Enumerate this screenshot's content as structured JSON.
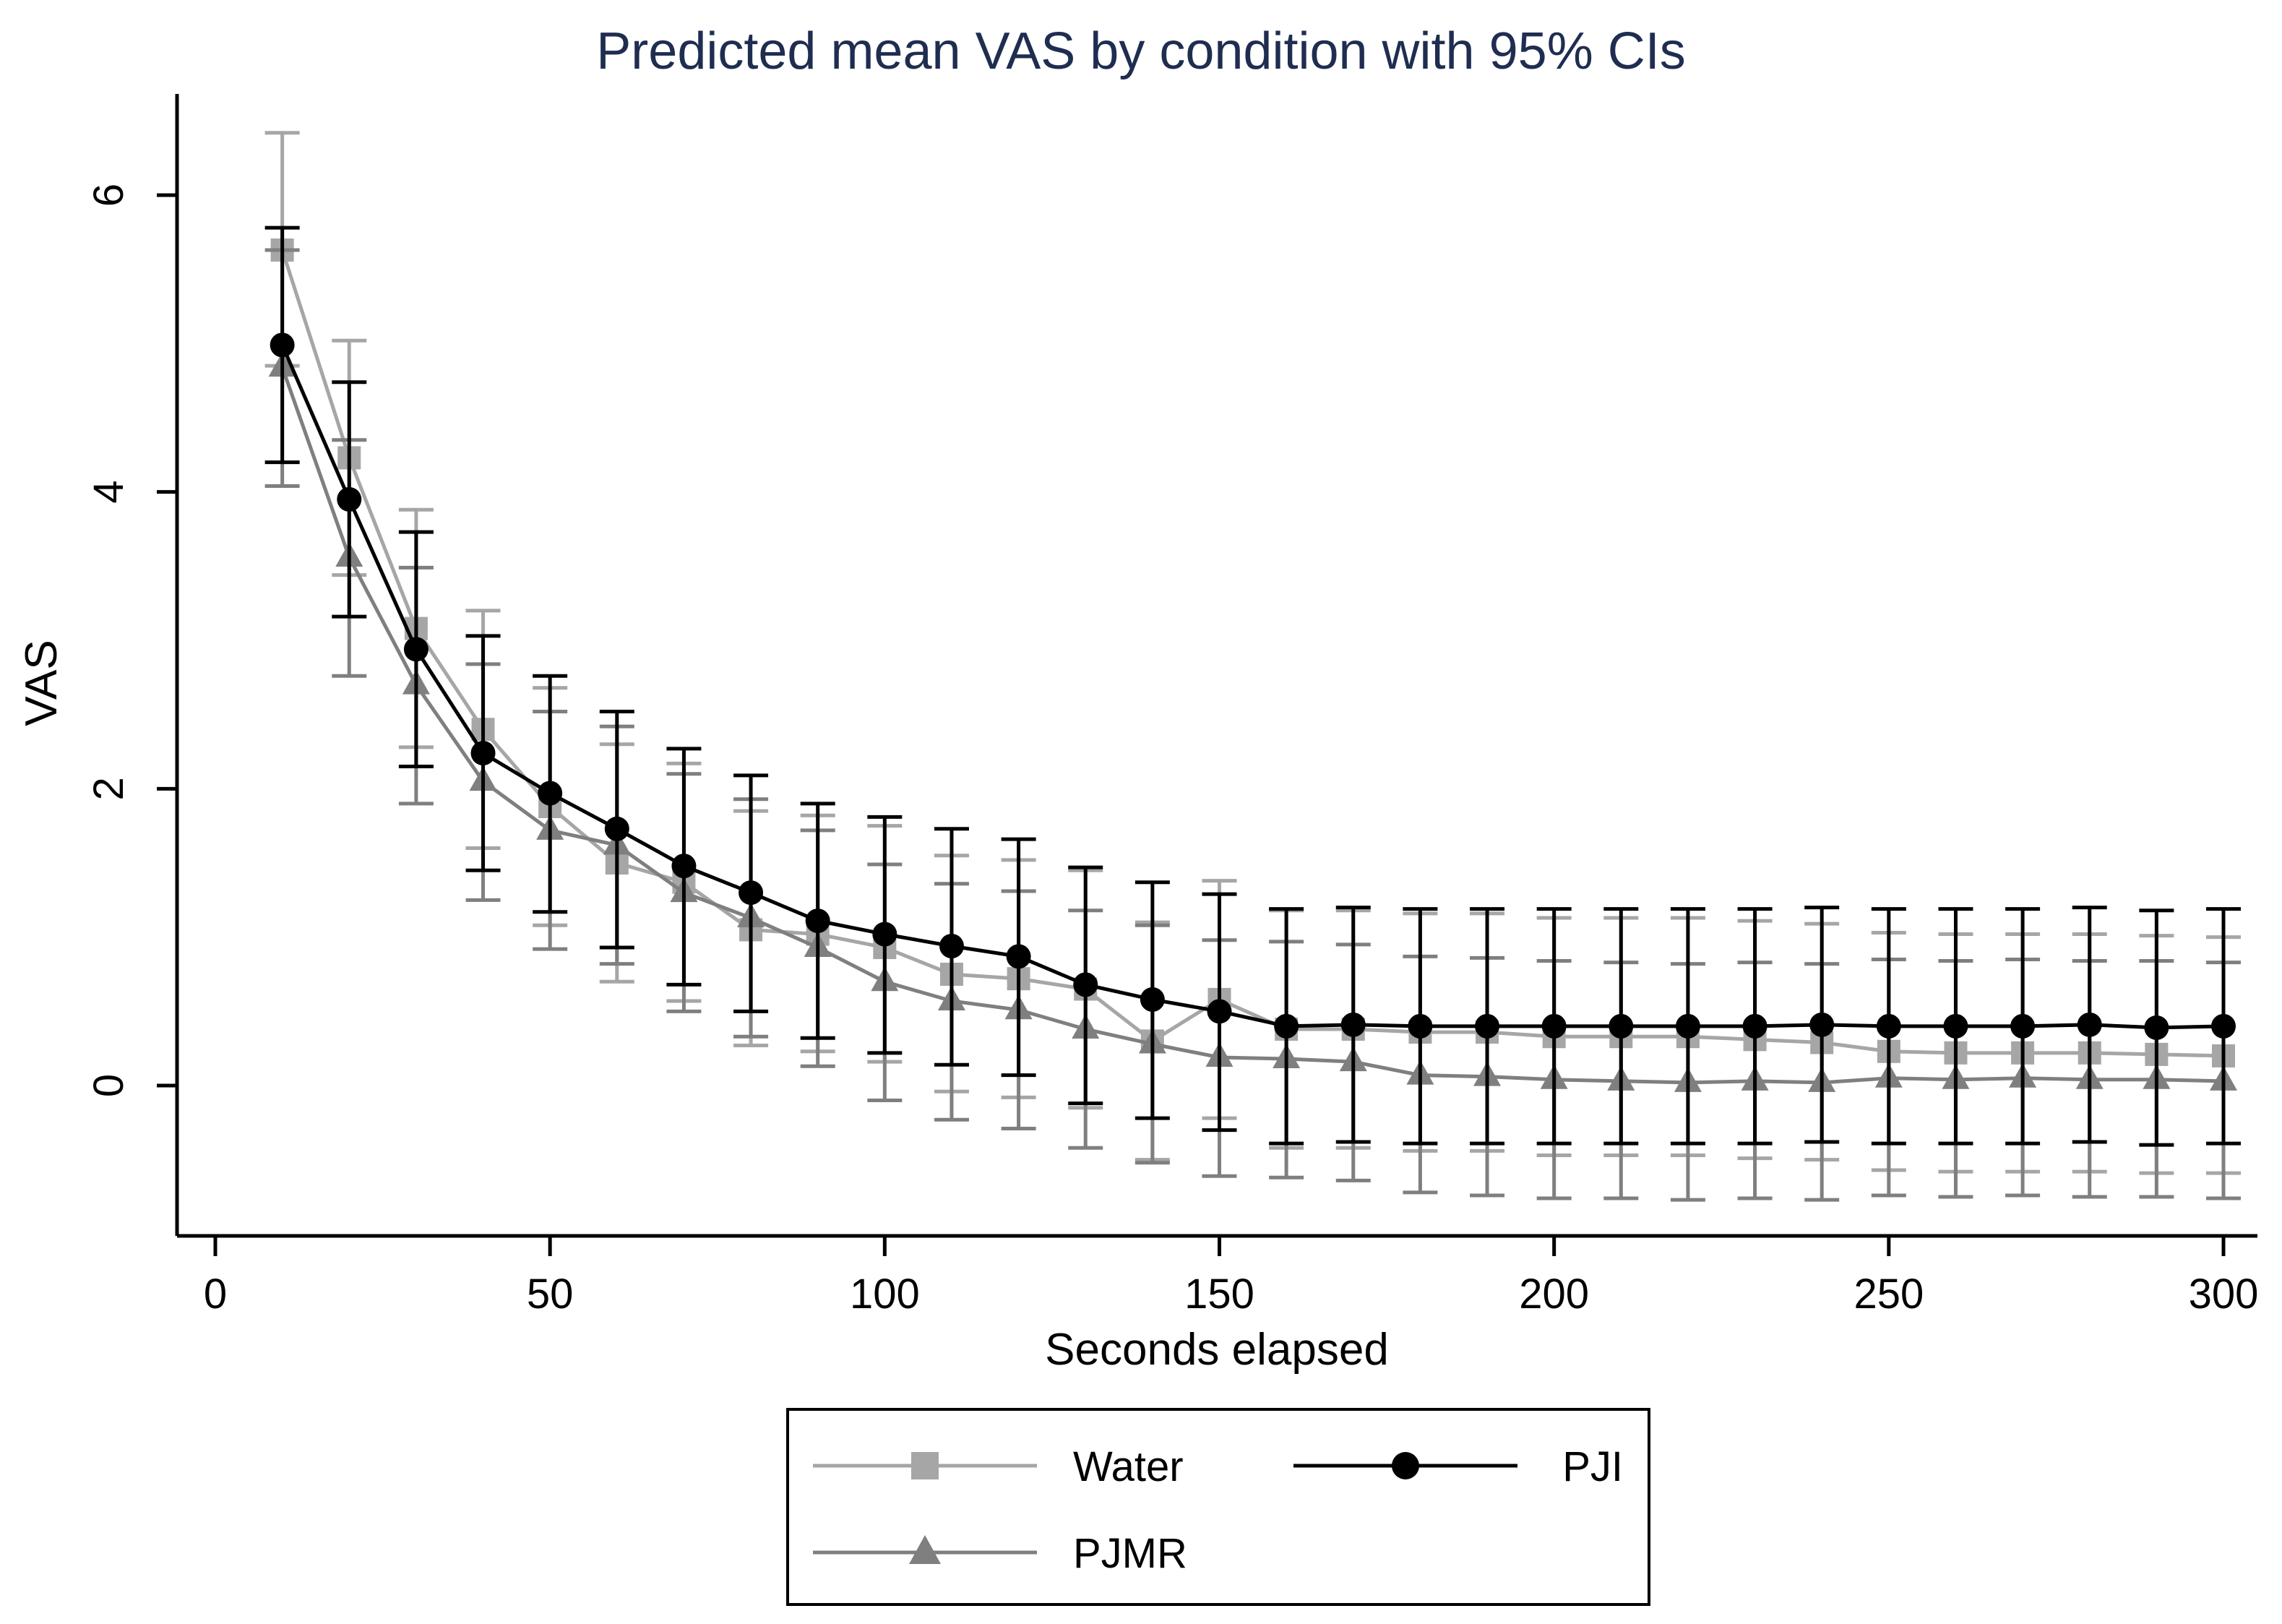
{
  "chart_data": {
    "type": "line",
    "title": "Predicted mean VAS by condition with 95% CIs",
    "xlabel": "Seconds elapsed",
    "ylabel": "VAS",
    "xlim": [
      -5,
      305
    ],
    "ylim": [
      -1.0,
      6.7
    ],
    "x_ticks": [
      0,
      50,
      100,
      150,
      200,
      250,
      300
    ],
    "x_tick_labels": [
      "0",
      "50",
      "100",
      "150",
      "200",
      "250",
      "300"
    ],
    "y_ticks": [
      0,
      2,
      4,
      6
    ],
    "y_tick_labels": [
      "0",
      "2",
      "4",
      "6"
    ],
    "grid": false,
    "legend_position": "bottom",
    "x": [
      10,
      20,
      30,
      40,
      50,
      60,
      70,
      80,
      90,
      100,
      110,
      120,
      130,
      140,
      150,
      160,
      170,
      180,
      190,
      200,
      210,
      220,
      230,
      240,
      250,
      260,
      270,
      280,
      290,
      300
    ],
    "series": [
      {
        "name": "Water",
        "marker": "square",
        "color": "#a6a6a6",
        "values": [
          5.63,
          4.23,
          3.08,
          2.4,
          1.88,
          1.5,
          1.37,
          1.05,
          1.02,
          0.93,
          0.75,
          0.72,
          0.65,
          0.3,
          0.58,
          0.38,
          0.38,
          0.36,
          0.36,
          0.33,
          0.33,
          0.33,
          0.31,
          0.29,
          0.23,
          0.22,
          0.22,
          0.22,
          0.21,
          0.2
        ],
        "ci_low": [
          4.85,
          3.44,
          2.28,
          1.6,
          1.08,
          0.7,
          0.57,
          0.27,
          0.23,
          0.16,
          -0.04,
          -0.08,
          -0.15,
          -0.5,
          -0.22,
          -0.42,
          -0.42,
          -0.44,
          -0.44,
          -0.47,
          -0.47,
          -0.47,
          -0.49,
          -0.5,
          -0.57,
          -0.58,
          -0.58,
          -0.58,
          -0.59,
          -0.59
        ],
        "ci_high": [
          6.42,
          5.02,
          3.88,
          3.2,
          2.68,
          2.3,
          2.17,
          1.85,
          1.82,
          1.75,
          1.55,
          1.52,
          1.45,
          1.1,
          1.38,
          1.18,
          1.18,
          1.16,
          1.16,
          1.13,
          1.13,
          1.13,
          1.11,
          1.09,
          1.03,
          1.02,
          1.02,
          1.02,
          1.01,
          1.0
        ]
      },
      {
        "name": "PJI",
        "marker": "circle",
        "color": "#000000",
        "values": [
          4.99,
          3.95,
          2.94,
          2.24,
          1.97,
          1.73,
          1.48,
          1.3,
          1.11,
          1.02,
          0.94,
          0.87,
          0.68,
          0.58,
          0.5,
          0.4,
          0.41,
          0.4,
          0.4,
          0.4,
          0.4,
          0.4,
          0.4,
          0.41,
          0.4,
          0.4,
          0.4,
          0.41,
          0.39,
          0.4
        ],
        "ci_low": [
          4.2,
          3.16,
          2.15,
          1.45,
          1.17,
          0.93,
          0.68,
          0.5,
          0.32,
          0.22,
          0.14,
          0.07,
          -0.12,
          -0.22,
          -0.3,
          -0.39,
          -0.38,
          -0.39,
          -0.39,
          -0.39,
          -0.39,
          -0.39,
          -0.39,
          -0.38,
          -0.39,
          -0.39,
          -0.39,
          -0.38,
          -0.4,
          -0.39
        ],
        "ci_high": [
          5.78,
          4.74,
          3.73,
          3.03,
          2.76,
          2.52,
          2.27,
          2.09,
          1.9,
          1.81,
          1.73,
          1.66,
          1.47,
          1.37,
          1.29,
          1.19,
          1.2,
          1.19,
          1.19,
          1.19,
          1.19,
          1.19,
          1.19,
          1.2,
          1.19,
          1.19,
          1.19,
          1.2,
          1.18,
          1.19
        ]
      },
      {
        "name": "PJMR",
        "marker": "triangle",
        "color": "#7f7f7f",
        "values": [
          4.84,
          3.56,
          2.7,
          2.05,
          1.72,
          1.62,
          1.3,
          1.13,
          0.93,
          0.7,
          0.57,
          0.51,
          0.38,
          0.28,
          0.19,
          0.18,
          0.16,
          0.07,
          0.06,
          0.04,
          0.03,
          0.02,
          0.03,
          0.02,
          0.05,
          0.04,
          0.05,
          0.04,
          0.04,
          0.03
        ],
        "ci_low": [
          4.04,
          2.76,
          1.9,
          1.25,
          0.92,
          0.82,
          0.5,
          0.33,
          0.13,
          -0.1,
          -0.23,
          -0.29,
          -0.42,
          -0.52,
          -0.61,
          -0.62,
          -0.64,
          -0.72,
          -0.74,
          -0.76,
          -0.76,
          -0.77,
          -0.76,
          -0.77,
          -0.74,
          -0.75,
          -0.74,
          -0.75,
          -0.75,
          -0.76
        ],
        "ci_high": [
          5.63,
          4.35,
          3.49,
          2.84,
          2.52,
          2.42,
          2.1,
          1.93,
          1.72,
          1.49,
          1.36,
          1.31,
          1.18,
          1.08,
          0.98,
          0.97,
          0.95,
          0.87,
          0.86,
          0.84,
          0.83,
          0.82,
          0.83,
          0.82,
          0.85,
          0.84,
          0.85,
          0.84,
          0.84,
          0.83
        ]
      }
    ]
  },
  "colors": {
    "title": "#1f2d50",
    "axis": "#000000",
    "background": "#ffffff"
  }
}
